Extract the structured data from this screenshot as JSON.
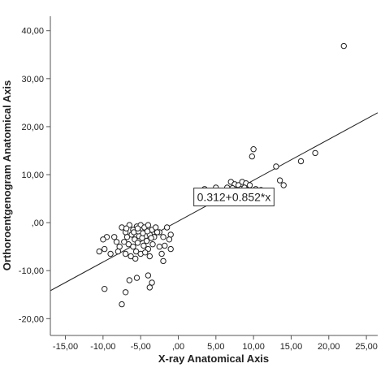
{
  "chart_data": {
    "type": "scatter",
    "title": "",
    "xlabel": "X-ray Anatomical Axis",
    "ylabel": "Orthoroentgenogram Anatomical Axis",
    "xlim": [
      -17,
      26.5
    ],
    "ylim": [
      -23.5,
      43
    ],
    "grid": false,
    "legend": "none",
    "x_ticks": [
      -15,
      -10,
      -5,
      0,
      5,
      10,
      15,
      20,
      25
    ],
    "x_tick_labels": [
      "-15,00",
      "-10,00",
      "-5,00",
      ",00",
      "5,00",
      "10,00",
      "15,00",
      "20,00",
      "25,00"
    ],
    "y_ticks": [
      40,
      30,
      20,
      10,
      0,
      -10,
      -20
    ],
    "y_tick_labels": [
      "40,00",
      "30,00",
      "20,00",
      "10,00",
      ",00",
      "-10,00",
      "-20,00"
    ],
    "fit_line": {
      "intercept": 0.312,
      "slope": 0.852,
      "x_range": [
        -17,
        26.5
      ]
    },
    "annotation": {
      "text": "0.312+0.852*x",
      "x": 2.5,
      "y": 4.5
    },
    "points": [
      [
        22.0,
        36.8
      ],
      [
        18.2,
        14.5
      ],
      [
        16.3,
        12.8
      ],
      [
        13.0,
        11.7
      ],
      [
        14.0,
        7.8
      ],
      [
        13.5,
        8.8
      ],
      [
        10.0,
        15.3
      ],
      [
        9.8,
        13.8
      ],
      [
        11.0,
        6.8
      ],
      [
        10.5,
        6.0
      ],
      [
        7.0,
        8.5
      ],
      [
        7.5,
        8.0
      ],
      [
        8.0,
        7.8
      ],
      [
        8.5,
        8.5
      ],
      [
        9.0,
        8.2
      ],
      [
        9.5,
        7.8
      ],
      [
        7.2,
        7.2
      ],
      [
        7.8,
        6.8
      ],
      [
        8.3,
        7.0
      ],
      [
        8.8,
        7.3
      ],
      [
        9.2,
        6.8
      ],
      [
        6.5,
        7.3
      ],
      [
        5.0,
        7.3
      ],
      [
        3.5,
        7.0
      ],
      [
        10.3,
        7.0
      ],
      [
        -7.5,
        -1.0
      ],
      [
        -7.0,
        -2.0
      ],
      [
        -6.5,
        -0.5
      ],
      [
        -6.0,
        -1.5
      ],
      [
        -5.5,
        -0.8
      ],
      [
        -5.0,
        -0.5
      ],
      [
        -4.5,
        -1.0
      ],
      [
        -4.0,
        -0.5
      ],
      [
        -3.5,
        -1.5
      ],
      [
        -3.0,
        -1.0
      ],
      [
        -2.5,
        -2.0
      ],
      [
        -2.0,
        -3.0
      ],
      [
        -6.8,
        -3.0
      ],
      [
        -6.2,
        -2.5
      ],
      [
        -5.8,
        -3.5
      ],
      [
        -5.2,
        -2.8
      ],
      [
        -4.8,
        -3.2
      ],
      [
        -4.2,
        -3.8
      ],
      [
        -3.8,
        -2.5
      ],
      [
        -3.2,
        -3.0
      ],
      [
        -7.2,
        -4.0
      ],
      [
        -6.6,
        -4.5
      ],
      [
        -6.0,
        -5.0
      ],
      [
        -5.4,
        -4.2
      ],
      [
        -4.6,
        -4.8
      ],
      [
        -4.0,
        -5.5
      ],
      [
        -3.4,
        -4.5
      ],
      [
        -5.6,
        -6.0
      ],
      [
        -5.0,
        -6.5
      ],
      [
        -4.4,
        -6.2
      ],
      [
        -3.8,
        -7.0
      ],
      [
        -7.8,
        -5.0
      ],
      [
        -8.2,
        -4.0
      ],
      [
        -8.5,
        -3.0
      ],
      [
        -8.0,
        -6.0
      ],
      [
        -6.3,
        -7.0
      ],
      [
        -5.7,
        -7.5
      ],
      [
        -7.0,
        -6.5
      ],
      [
        -5.9,
        -2.0
      ],
      [
        -5.3,
        -1.8
      ],
      [
        -4.7,
        -2.2
      ],
      [
        -4.1,
        -1.8
      ],
      [
        -3.6,
        -3.2
      ],
      [
        -2.8,
        -2.0
      ],
      [
        -6.9,
        -1.2
      ],
      [
        -5.4,
        -1.2
      ],
      [
        -9.5,
        -3.0
      ],
      [
        -10.0,
        -3.5
      ],
      [
        -9.8,
        -5.5
      ],
      [
        -10.5,
        -6.0
      ],
      [
        -9.0,
        -6.5
      ],
      [
        -1.5,
        -1.0
      ],
      [
        -1.0,
        -2.5
      ],
      [
        -1.2,
        -3.5
      ],
      [
        -1.8,
        -4.8
      ],
      [
        -1.0,
        -5.5
      ],
      [
        -2.2,
        -6.5
      ],
      [
        -2.0,
        -8.0
      ],
      [
        -2.5,
        -5.0
      ],
      [
        -6.5,
        -12.0
      ],
      [
        -5.5,
        -11.5
      ],
      [
        -4.0,
        -11.0
      ],
      [
        -3.5,
        -12.5
      ],
      [
        -3.8,
        -13.5
      ],
      [
        -7.0,
        -14.5
      ],
      [
        -9.8,
        -13.8
      ],
      [
        -7.5,
        -17.0
      ]
    ]
  }
}
